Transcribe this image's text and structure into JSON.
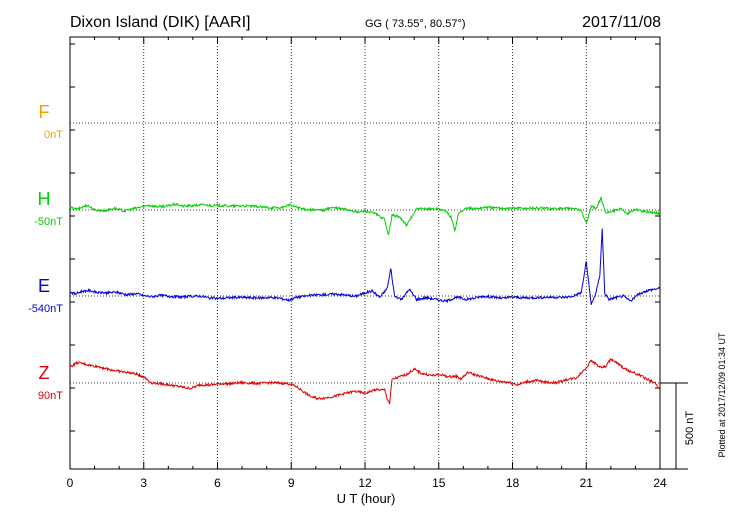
{
  "header": {
    "station": "Dixon Island (DIK)  [AARI]",
    "coords": "GG ( 73.55°,  80.57°)",
    "date": "2017/11/08"
  },
  "footer": {
    "plotted": "Plotted at 2017/12/09 01:34 UT"
  },
  "chart_data": {
    "type": "line",
    "title": "Dixon Island (DIK)  [AARI]",
    "xlabel": "U T (hour)",
    "xlim": [
      0,
      24
    ],
    "xticks": [
      0,
      3,
      6,
      9,
      12,
      15,
      18,
      21,
      24
    ],
    "grid": true,
    "scale_bar": "500 nT",
    "units": "hour",
    "series": [
      {
        "name": "F",
        "baseline_label": "0nT",
        "color": "#f5a000",
        "x": [],
        "values": []
      },
      {
        "name": "H",
        "baseline_label": "-50nT",
        "color": "#00d000",
        "x": [
          0,
          0.3,
          0.7,
          1.0,
          1.4,
          1.8,
          2.2,
          2.6,
          2.9,
          3.2,
          3.5,
          3.9,
          4.3,
          4.6,
          5.0,
          5.4,
          5.8,
          6.2,
          6.6,
          7.0,
          7.4,
          7.8,
          8.2,
          8.6,
          8.9,
          9.1,
          9.5,
          9.9,
          10.3,
          10.6,
          11.0,
          11.4,
          11.7,
          12.0,
          12.4,
          12.8,
          12.95,
          13.1,
          13.4,
          13.7,
          13.85,
          14.1,
          14.5,
          15.0,
          15.3,
          15.5,
          15.65,
          15.8,
          16.1,
          16.5,
          16.9,
          17.3,
          17.7,
          18.1,
          18.5,
          18.9,
          19.3,
          19.7,
          20.1,
          20.5,
          20.8,
          21.0,
          21.2,
          21.4,
          21.6,
          21.8,
          22.1,
          22.4,
          22.7,
          23.0,
          23.3,
          23.6,
          24.0
        ],
        "values": [
          12,
          5,
          28,
          0,
          -5,
          10,
          -6,
          8,
          18,
          28,
          20,
          22,
          34,
          22,
          25,
          30,
          26,
          26,
          22,
          24,
          22,
          16,
          14,
          12,
          30,
          22,
          5,
          0,
          -2,
          14,
          8,
          0,
          -14,
          -6,
          -20,
          -55,
          -150,
          -30,
          -40,
          -90,
          -50,
          6,
          6,
          8,
          -10,
          -40,
          -120,
          -22,
          10,
          8,
          16,
          12,
          10,
          12,
          10,
          12,
          10,
          8,
          10,
          8,
          0,
          -80,
          20,
          8,
          70,
          -20,
          -4,
          5,
          -20,
          5,
          -8,
          -12,
          -20
        ]
      },
      {
        "name": "E",
        "baseline_label": "-540nT",
        "color": "#0000e0",
        "x": [
          0,
          0.2,
          0.5,
          0.8,
          1.1,
          1.5,
          1.9,
          2.3,
          2.7,
          3.0,
          3.3,
          3.7,
          4.1,
          4.5,
          4.9,
          5.3,
          5.7,
          6.1,
          6.5,
          6.9,
          7.3,
          7.7,
          8.1,
          8.5,
          8.9,
          9.2,
          9.6,
          10.0,
          10.4,
          10.8,
          11.2,
          11.6,
          12.0,
          12.3,
          12.6,
          12.9,
          13.05,
          13.2,
          13.5,
          13.8,
          14.1,
          14.5,
          14.9,
          15.3,
          15.6,
          15.8,
          16.1,
          16.4,
          16.8,
          17.2,
          17.6,
          18.0,
          18.4,
          18.8,
          19.2,
          19.6,
          20.0,
          20.4,
          20.8,
          21.0,
          21.2,
          21.4,
          21.55,
          21.65,
          21.75,
          21.9,
          22.2,
          22.5,
          22.8,
          23.1,
          23.4,
          23.7,
          24.0
        ],
        "values": [
          25,
          12,
          28,
          32,
          20,
          18,
          22,
          8,
          14,
          2,
          -4,
          4,
          -2,
          -6,
          -2,
          0,
          -12,
          -14,
          -10,
          -8,
          -10,
          -12,
          -8,
          -12,
          -24,
          -8,
          0,
          6,
          8,
          12,
          6,
          -2,
          18,
          30,
          -8,
          44,
          160,
          0,
          -20,
          40,
          -20,
          -10,
          -20,
          -30,
          -14,
          -8,
          -20,
          -14,
          -2,
          -6,
          -14,
          -6,
          -10,
          -10,
          -8,
          -6,
          -8,
          -4,
          20,
          200,
          -50,
          20,
          120,
          390,
          20,
          -20,
          -10,
          0,
          -30,
          8,
          28,
          38,
          45
        ]
      },
      {
        "name": "Z",
        "baseline_label": "90nT",
        "color": "#e00000",
        "x": [
          0,
          0.3,
          0.6,
          0.9,
          1.2,
          1.6,
          2.0,
          2.4,
          2.7,
          3.0,
          3.3,
          3.7,
          4.1,
          4.5,
          4.9,
          5.3,
          5.7,
          6.1,
          6.5,
          6.9,
          7.3,
          7.7,
          8.1,
          8.5,
          8.9,
          9.2,
          9.5,
          9.8,
          10.1,
          10.4,
          10.8,
          11.2,
          11.6,
          12.0,
          12.4,
          12.8,
          12.9,
          13.0,
          13.1,
          13.4,
          13.7,
          14.0,
          14.3,
          14.7,
          15.1,
          15.4,
          15.7,
          15.9,
          16.2,
          16.6,
          17.0,
          17.4,
          17.8,
          18.2,
          18.6,
          19.0,
          19.4,
          19.8,
          20.2,
          20.6,
          21.0,
          21.2,
          21.4,
          21.6,
          21.8,
          22.0,
          22.3,
          22.6,
          22.9,
          23.2,
          23.5,
          23.8,
          24.0
        ],
        "values": [
          95,
          118,
          110,
          100,
          94,
          78,
          68,
          60,
          52,
          36,
          2,
          -4,
          -12,
          -22,
          -32,
          -10,
          -12,
          -4,
          -4,
          2,
          0,
          -2,
          2,
          0,
          -4,
          -20,
          -50,
          -80,
          -90,
          -86,
          -76,
          -60,
          -48,
          -60,
          -40,
          -40,
          -90,
          -120,
          20,
          36,
          50,
          80,
          56,
          44,
          48,
          36,
          40,
          24,
          62,
          42,
          26,
          10,
          6,
          -10,
          8,
          14,
          4,
          2,
          20,
          30,
          90,
          130,
          110,
          90,
          96,
          140,
          110,
          80,
          60,
          44,
          20,
          0,
          -40
        ]
      }
    ]
  }
}
